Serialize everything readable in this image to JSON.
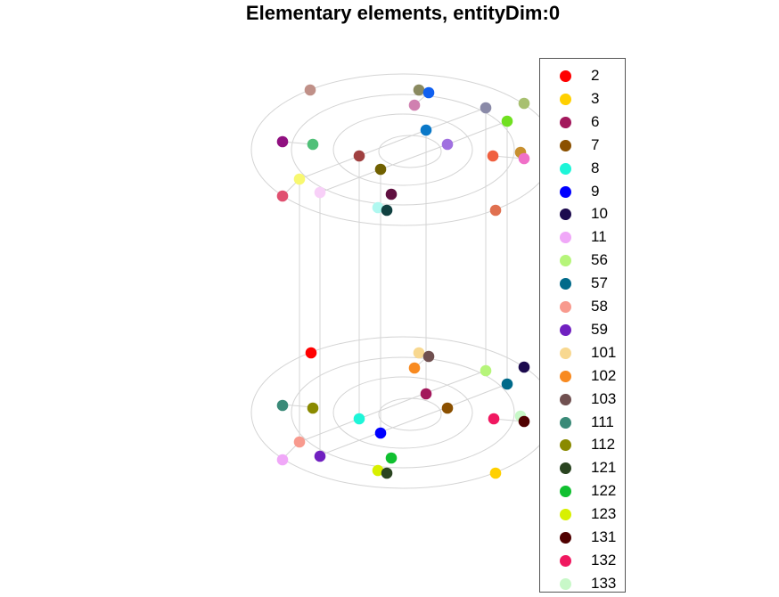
{
  "title": "Elementary elements, entityDim:0",
  "legend": [
    {
      "label": "2",
      "color": "#ff0000"
    },
    {
      "label": "3",
      "color": "#ffd000"
    },
    {
      "label": "6",
      "color": "#a3185c"
    },
    {
      "label": "7",
      "color": "#8b5000"
    },
    {
      "label": "8",
      "color": "#1ef5d8"
    },
    {
      "label": "9",
      "color": "#0000ff"
    },
    {
      "label": "10",
      "color": "#1c0a4e"
    },
    {
      "label": "11",
      "color": "#f0a8f8"
    },
    {
      "label": "56",
      "color": "#b6f57a"
    },
    {
      "label": "57",
      "color": "#006a8a"
    },
    {
      "label": "58",
      "color": "#f89a8e"
    },
    {
      "label": "59",
      "color": "#7020c0"
    },
    {
      "label": "101",
      "color": "#f8d890"
    },
    {
      "label": "102",
      "color": "#f88a20"
    },
    {
      "label": "103",
      "color": "#705050"
    },
    {
      "label": "111",
      "color": "#3a8a78"
    },
    {
      "label": "112",
      "color": "#8a8a00"
    },
    {
      "label": "121",
      "color": "#2a4420"
    },
    {
      "label": "122",
      "color": "#10c030"
    },
    {
      "label": "123",
      "color": "#d8f000"
    },
    {
      "label": "131",
      "color": "#500000"
    },
    {
      "label": "132",
      "color": "#f01860"
    },
    {
      "label": "133",
      "color": "#c8f8c8"
    }
  ],
  "top_points": [
    {
      "color": "#c09088"
    },
    {
      "color": "#8a8a60"
    },
    {
      "color": "#1060f0"
    },
    {
      "color": "#d080b0"
    },
    {
      "color": "#8a8aa8"
    },
    {
      "color": "#a8c070"
    },
    {
      "color": "#70e020"
    },
    {
      "color": "#0a78c8"
    },
    {
      "color": "#a070e0"
    },
    {
      "color": "#901080"
    },
    {
      "color": "#50c078"
    },
    {
      "color": "#a04040"
    },
    {
      "color": "#706000"
    },
    {
      "color": "#f06040"
    },
    {
      "color": "#c89030"
    },
    {
      "color": "#f070c8"
    },
    {
      "color": "#f8f870"
    },
    {
      "color": "#f8d0f8"
    },
    {
      "color": "#e05070"
    },
    {
      "color": "#601040"
    },
    {
      "color": "#b0f8f0"
    },
    {
      "color": "#104040"
    },
    {
      "color": "#e07050"
    }
  ],
  "bottom_points": [
    {
      "color": "#ff0000"
    },
    {
      "color": "#f8d890"
    },
    {
      "color": "#705050"
    },
    {
      "color": "#f88a20"
    },
    {
      "color": "#b6f57a"
    },
    {
      "color": "#1c0a4e"
    },
    {
      "color": "#006a8a"
    },
    {
      "color": "#a3185c"
    },
    {
      "color": "#3a8a78"
    },
    {
      "color": "#8a8a00"
    },
    {
      "color": "#8b5000"
    },
    {
      "color": "#1ef5d8"
    },
    {
      "color": "#f01860"
    },
    {
      "color": "#c8f8c8"
    },
    {
      "color": "#500000"
    },
    {
      "color": "#0000ff"
    },
    {
      "color": "#f89a8e"
    },
    {
      "color": "#7020c0"
    },
    {
      "color": "#f0a8f8"
    },
    {
      "color": "#10c030"
    },
    {
      "color": "#d8f000"
    },
    {
      "color": "#2a4420"
    },
    {
      "color": "#ffd000"
    }
  ]
}
